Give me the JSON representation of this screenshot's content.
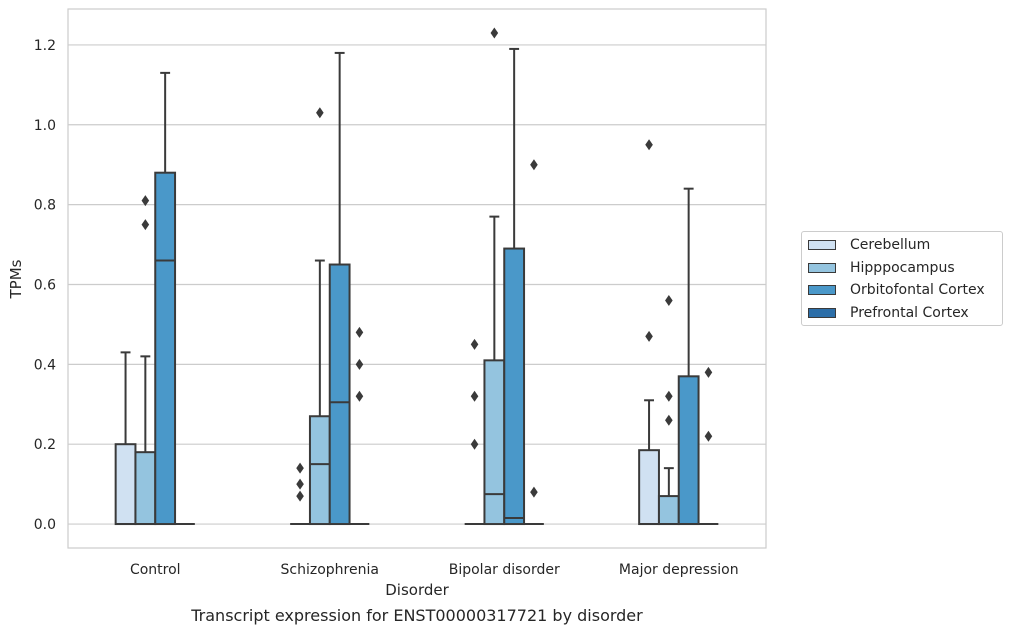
{
  "chart_data": {
    "type": "box",
    "title": "",
    "caption": "Transcript expression for ENST00000317721 by disorder",
    "xlabel": "Disorder",
    "ylabel": "TPMs",
    "ylim": [
      -0.06,
      1.29
    ],
    "yticks": [
      0.0,
      0.2,
      0.4,
      0.6,
      0.8,
      1.0,
      1.2
    ],
    "ytick_labels": [
      "0.0",
      "0.2",
      "0.4",
      "0.6",
      "0.8",
      "1.0",
      "1.2"
    ],
    "grid": "horizontal",
    "legend_position": "right",
    "categories": [
      "Control",
      "Schizophrenia",
      "Bipolar disorder",
      "Major depression"
    ],
    "series": [
      {
        "name": "Cerebellum",
        "color": "#d0e1f2",
        "boxes": [
          {
            "q1": 0.0,
            "median": 0.0,
            "q3": 0.2,
            "whisker_low": 0.0,
            "whisker_high": 0.43,
            "outliers": []
          },
          {
            "q1": 0.0,
            "median": 0.0,
            "q3": 0.0,
            "whisker_low": 0.0,
            "whisker_high": 0.0,
            "outliers": [
              0.07,
              0.1,
              0.14
            ]
          },
          {
            "q1": 0.0,
            "median": 0.0,
            "q3": 0.0,
            "whisker_low": 0.0,
            "whisker_high": 0.0,
            "outliers": [
              0.2,
              0.32,
              0.45
            ]
          },
          {
            "q1": 0.0,
            "median": 0.0,
            "q3": 0.185,
            "whisker_low": 0.0,
            "whisker_high": 0.31,
            "outliers": [
              0.47,
              0.95
            ]
          }
        ]
      },
      {
        "name": "Hipppocampus",
        "color": "#94c4df",
        "boxes": [
          {
            "q1": 0.0,
            "median": 0.0,
            "q3": 0.18,
            "whisker_low": 0.0,
            "whisker_high": 0.42,
            "outliers": [
              0.75,
              0.81
            ]
          },
          {
            "q1": 0.0,
            "median": 0.15,
            "q3": 0.27,
            "whisker_low": 0.0,
            "whisker_high": 0.66,
            "outliers": [
              1.03
            ]
          },
          {
            "q1": 0.0,
            "median": 0.075,
            "q3": 0.41,
            "whisker_low": 0.0,
            "whisker_high": 0.77,
            "outliers": [
              1.23
            ]
          },
          {
            "q1": 0.0,
            "median": 0.0,
            "q3": 0.07,
            "whisker_low": 0.0,
            "whisker_high": 0.14,
            "outliers": [
              0.26,
              0.32,
              0.56
            ]
          }
        ]
      },
      {
        "name": "Orbitofontal Cortex",
        "color": "#4a98c9",
        "boxes": [
          {
            "q1": 0.0,
            "median": 0.66,
            "q3": 0.88,
            "whisker_low": 0.0,
            "whisker_high": 1.13,
            "outliers": []
          },
          {
            "q1": 0.0,
            "median": 0.305,
            "q3": 0.65,
            "whisker_low": 0.0,
            "whisker_high": 1.18,
            "outliers": []
          },
          {
            "q1": 0.0,
            "median": 0.015,
            "q3": 0.69,
            "whisker_low": 0.0,
            "whisker_high": 1.19,
            "outliers": []
          },
          {
            "q1": 0.0,
            "median": 0.0,
            "q3": 0.37,
            "whisker_low": 0.0,
            "whisker_high": 0.84,
            "outliers": []
          }
        ]
      },
      {
        "name": "Prefrontal Cortex",
        "color": "#2c6ea8",
        "boxes": [
          {
            "q1": 0.0,
            "median": 0.0,
            "q3": 0.0,
            "whisker_low": 0.0,
            "whisker_high": 0.0,
            "outliers": []
          },
          {
            "q1": 0.0,
            "median": 0.0,
            "q3": 0.0,
            "whisker_low": 0.0,
            "whisker_high": 0.0,
            "outliers": [
              0.32,
              0.4,
              0.48
            ]
          },
          {
            "q1": 0.0,
            "median": 0.0,
            "q3": 0.0,
            "whisker_low": 0.0,
            "whisker_high": 0.0,
            "outliers": [
              0.08,
              0.9
            ]
          },
          {
            "q1": 0.0,
            "median": 0.0,
            "q3": 0.0,
            "whisker_low": 0.0,
            "whisker_high": 0.0,
            "outliers": [
              0.22,
              0.38
            ]
          }
        ]
      }
    ]
  }
}
